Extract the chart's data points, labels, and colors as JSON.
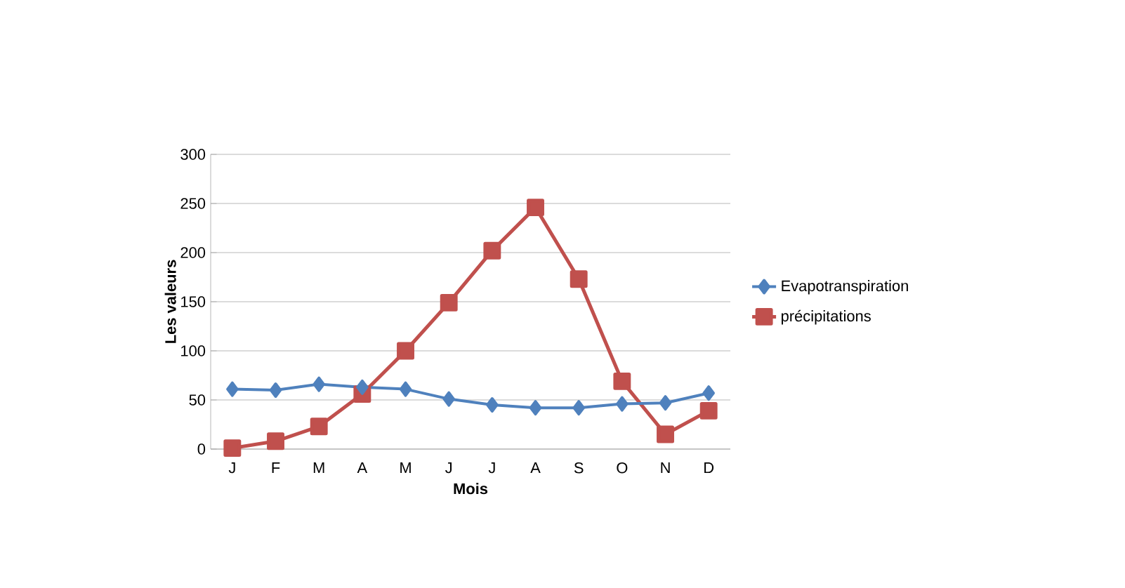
{
  "chart_data": {
    "type": "line",
    "xlabel": "Mois",
    "ylabel": "Les valeurs",
    "categories": [
      "J",
      "F",
      "M",
      "A",
      "M",
      "J",
      "J",
      "A",
      "S",
      "O",
      "N",
      "D"
    ],
    "series": [
      {
        "name": "Evapotranspiration",
        "color": "#4f81bd",
        "marker": "diamond",
        "values": [
          61,
          60,
          66,
          63,
          61,
          51,
          45,
          42,
          42,
          46,
          47,
          57
        ]
      },
      {
        "name": "précipitations",
        "color": "#c0504d",
        "marker": "square",
        "values": [
          1,
          8,
          23,
          56,
          100,
          149,
          202,
          246,
          173,
          69,
          15,
          39
        ]
      }
    ],
    "ylim": [
      0,
      300
    ],
    "yticks": [
      0,
      50,
      100,
      150,
      200,
      250,
      300
    ],
    "grid": "y",
    "legend": "right",
    "line_style": "solid"
  }
}
